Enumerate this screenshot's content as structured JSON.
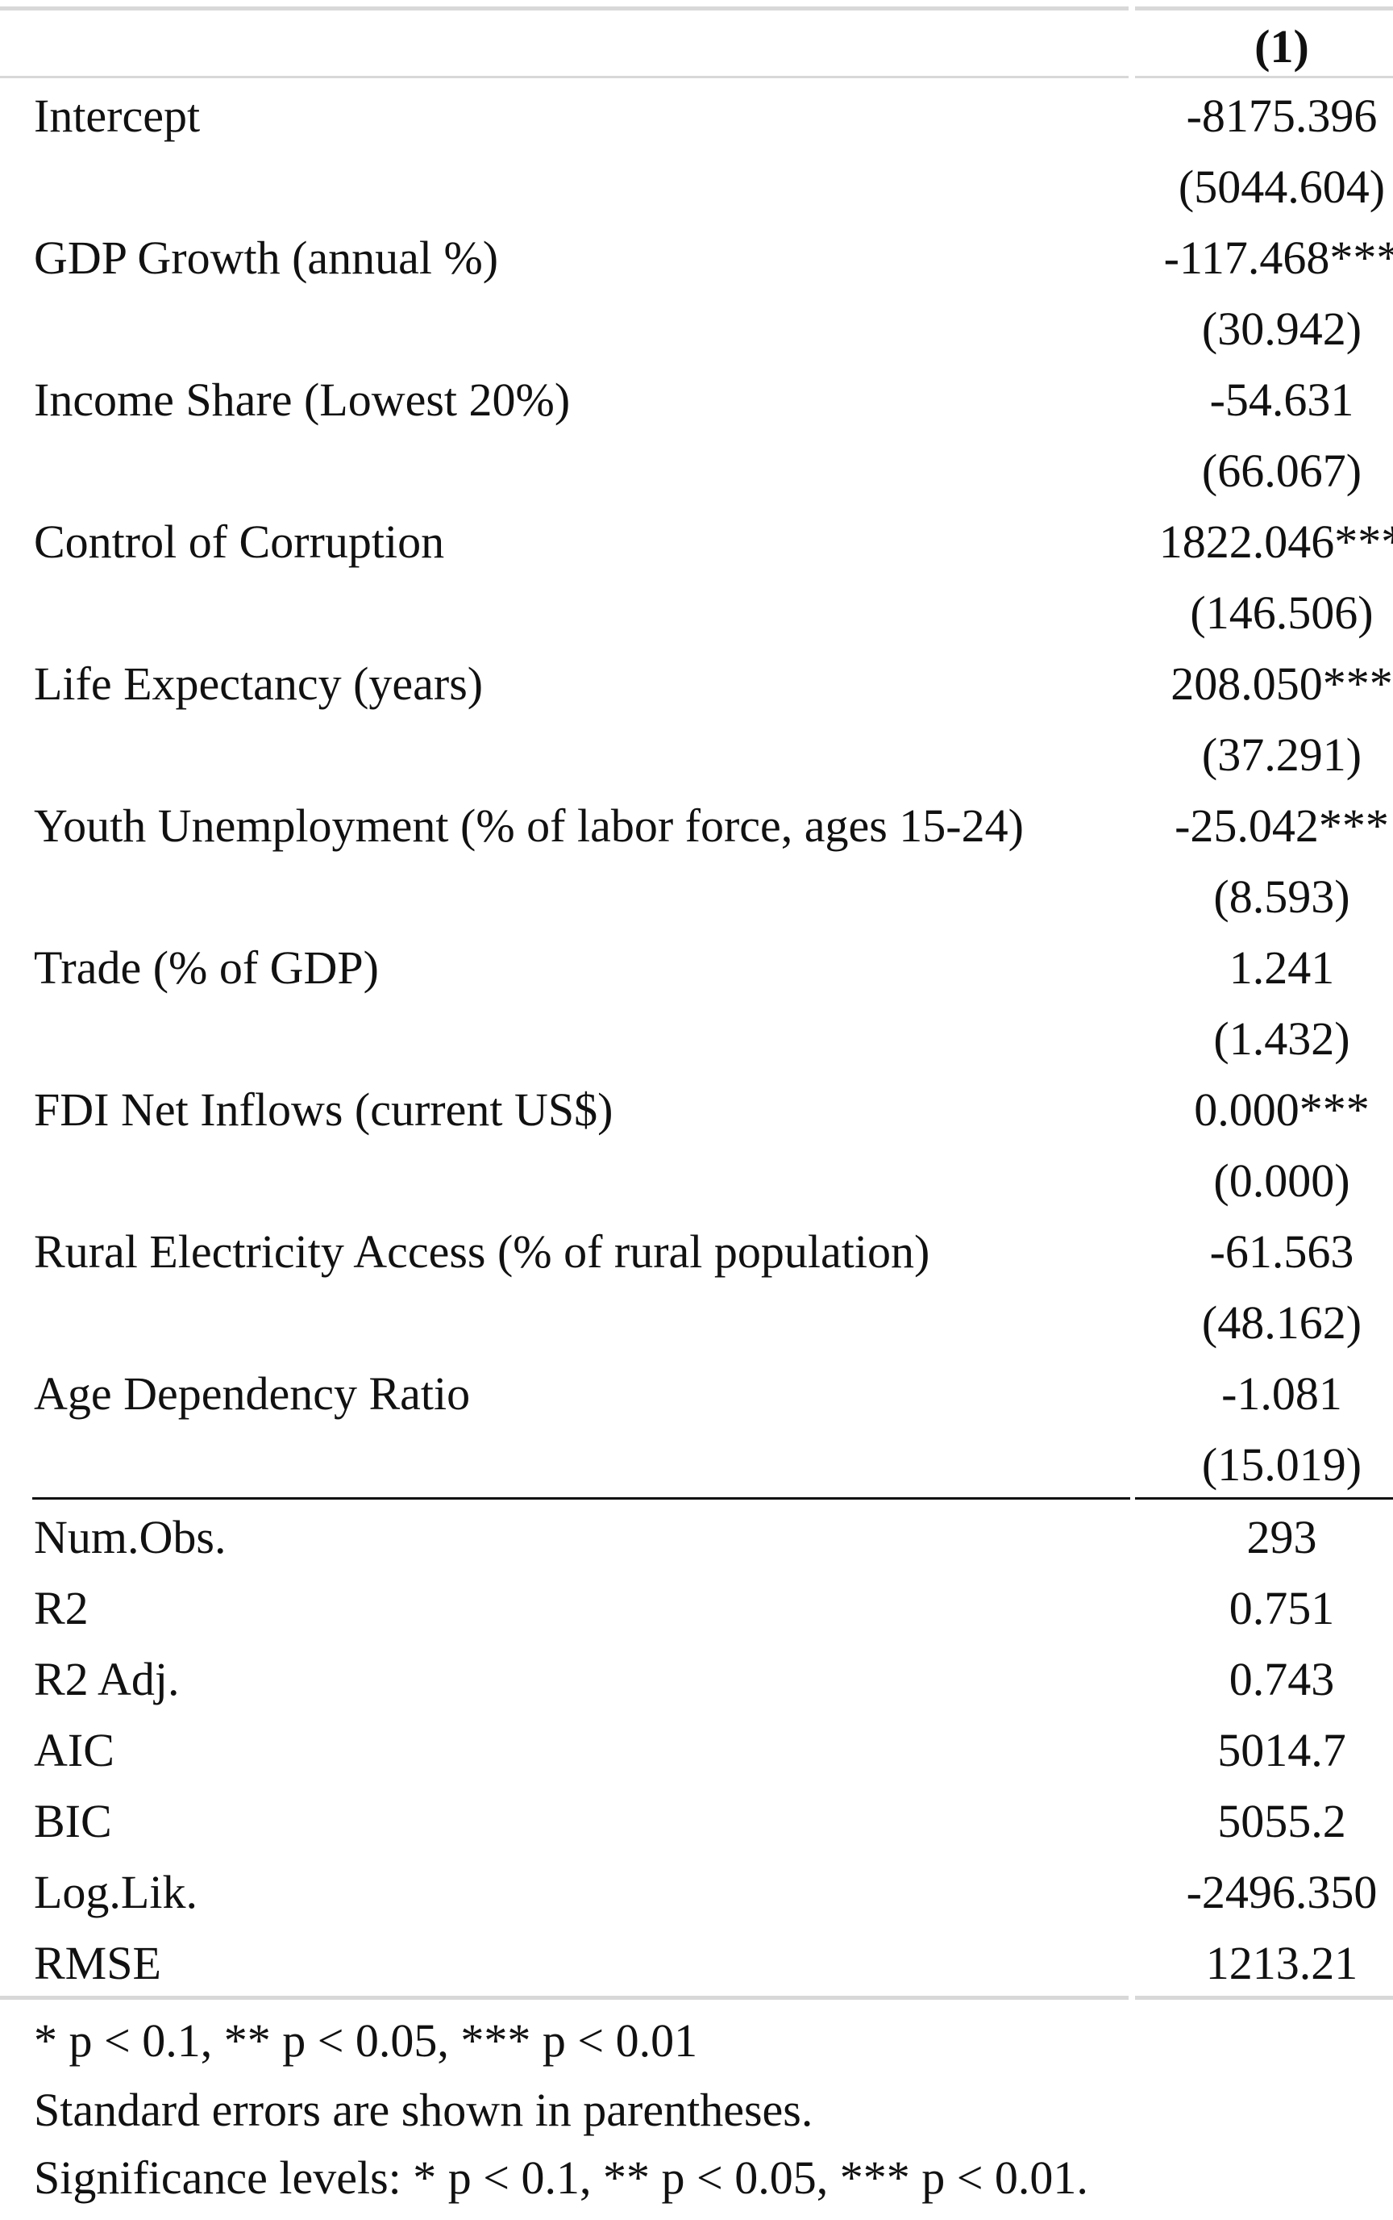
{
  "table": {
    "column_header": "(1)",
    "coefficients": [
      {
        "label": "Intercept",
        "estimate": "-8175.396",
        "se": "(5044.604)"
      },
      {
        "label": "GDP Growth (annual %)",
        "estimate": "-117.468***",
        "se": "(30.942)"
      },
      {
        "label": "Income Share (Lowest 20%)",
        "estimate": "-54.631",
        "se": "(66.067)"
      },
      {
        "label": "Control of Corruption",
        "estimate": "1822.046***",
        "se": "(146.506)"
      },
      {
        "label": "Life Expectancy (years)",
        "estimate": "208.050***",
        "se": "(37.291)"
      },
      {
        "label": "Youth Unemployment (% of labor force, ages 15-24)",
        "estimate": "-25.042***",
        "se": "(8.593)"
      },
      {
        "label": "Trade (% of GDP)",
        "estimate": "1.241",
        "se": "(1.432)"
      },
      {
        "label": "FDI Net Inflows (current US$)",
        "estimate": "0.000***",
        "se": "(0.000)"
      },
      {
        "label": "Rural Electricity Access (% of rural population)",
        "estimate": "-61.563",
        "se": "(48.162)"
      },
      {
        "label": "Age Dependency Ratio",
        "estimate": "-1.081",
        "se": "(15.019)"
      }
    ],
    "stats": [
      {
        "label": "Num.Obs.",
        "value": "293"
      },
      {
        "label": "R2",
        "value": "0.751"
      },
      {
        "label": "R2 Adj.",
        "value": "0.743"
      },
      {
        "label": "AIC",
        "value": "5014.7"
      },
      {
        "label": "BIC",
        "value": "5055.2"
      },
      {
        "label": "Log.Lik.",
        "value": "-2496.350"
      },
      {
        "label": "RMSE",
        "value": "1213.21"
      }
    ],
    "notes": [
      "* p < 0.1, ** p < 0.05, *** p < 0.01",
      "Standard errors are shown in parentheses.",
      "Significance levels: * p < 0.1, ** p < 0.05, *** p < 0.01."
    ]
  }
}
